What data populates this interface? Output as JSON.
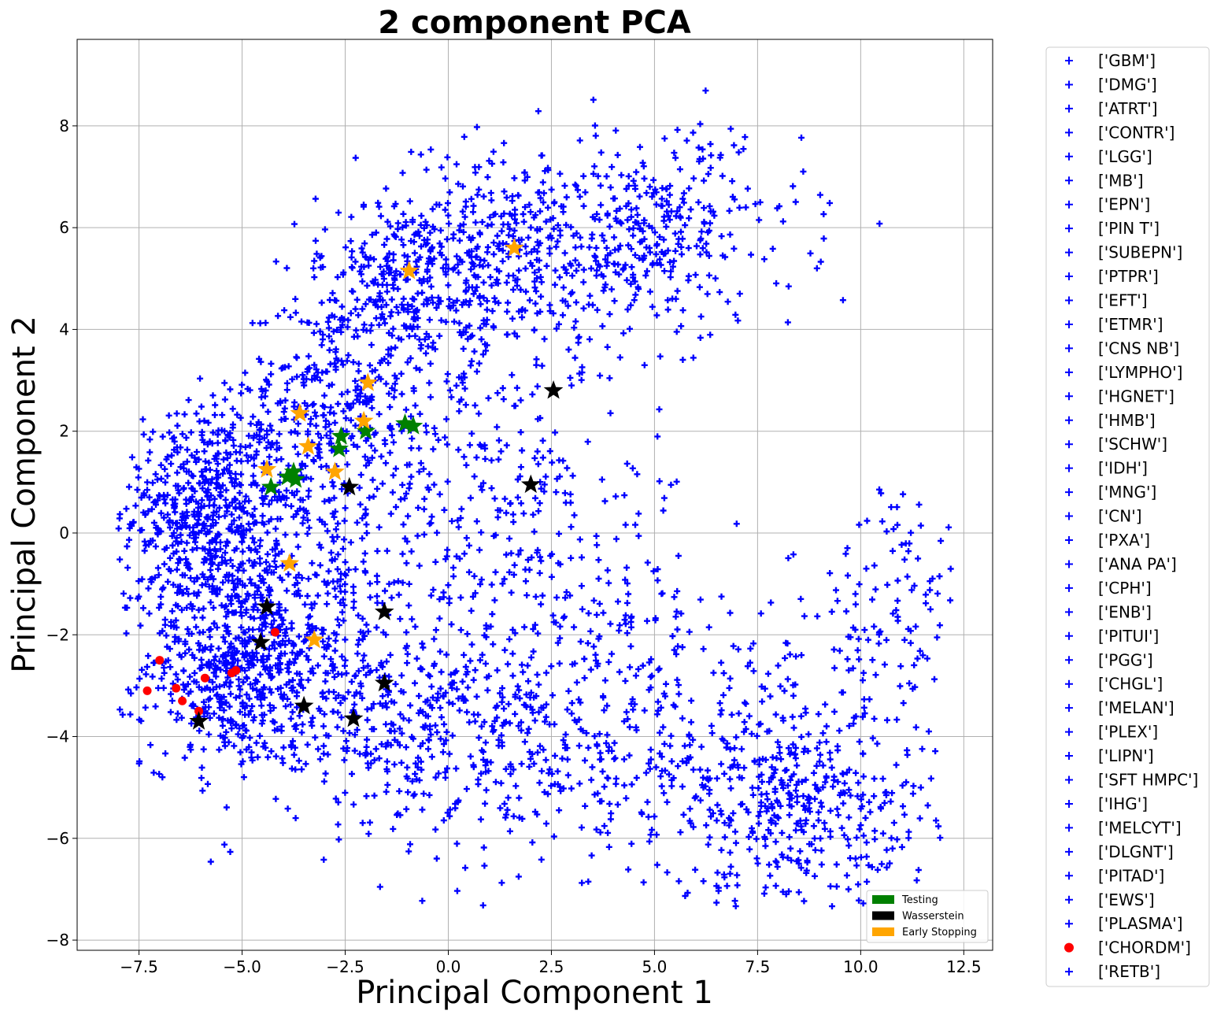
{
  "chart_data": {
    "type": "scatter",
    "title": "2 component PCA",
    "xlabel": "Principal Component 1",
    "ylabel": "Principal Component 2",
    "xlim": [
      -9,
      13.2
    ],
    "ylim": [
      -8.2,
      9.7
    ],
    "xticks": [
      -7.5,
      -5.0,
      -2.5,
      0.0,
      2.5,
      5.0,
      7.5,
      10.0,
      12.5
    ],
    "xtick_labels": [
      "−7.5",
      "−5.0",
      "−2.5",
      "0.0",
      "2.5",
      "5.0",
      "7.5",
      "10.0",
      "12.5"
    ],
    "yticks": [
      -8,
      -6,
      -4,
      -2,
      0,
      2,
      4,
      6,
      8
    ],
    "ytick_labels": [
      "−8",
      "−6",
      "−4",
      "−2",
      "0",
      "2",
      "4",
      "6",
      "8"
    ],
    "grid": true,
    "point_color": "#0000ff",
    "class_legend": {
      "placement": "outside-right",
      "entries": [
        {
          "label": "['GBM']",
          "marker": "plus",
          "color": "#0000ff"
        },
        {
          "label": "['DMG']",
          "marker": "plus",
          "color": "#0000ff"
        },
        {
          "label": "['ATRT']",
          "marker": "plus",
          "color": "#0000ff"
        },
        {
          "label": "['CONTR']",
          "marker": "plus",
          "color": "#0000ff"
        },
        {
          "label": "['LGG']",
          "marker": "plus",
          "color": "#0000ff"
        },
        {
          "label": "['MB']",
          "marker": "plus",
          "color": "#0000ff"
        },
        {
          "label": "['EPN']",
          "marker": "plus",
          "color": "#0000ff"
        },
        {
          "label": "['PIN T']",
          "marker": "plus",
          "color": "#0000ff"
        },
        {
          "label": "['SUBEPN']",
          "marker": "plus",
          "color": "#0000ff"
        },
        {
          "label": "['PTPR']",
          "marker": "plus",
          "color": "#0000ff"
        },
        {
          "label": "['EFT']",
          "marker": "plus",
          "color": "#0000ff"
        },
        {
          "label": "['ETMR']",
          "marker": "plus",
          "color": "#0000ff"
        },
        {
          "label": "['CNS NB']",
          "marker": "plus",
          "color": "#0000ff"
        },
        {
          "label": "['LYMPHO']",
          "marker": "plus",
          "color": "#0000ff"
        },
        {
          "label": "['HGNET']",
          "marker": "plus",
          "color": "#0000ff"
        },
        {
          "label": "['HMB']",
          "marker": "plus",
          "color": "#0000ff"
        },
        {
          "label": "['SCHW']",
          "marker": "plus",
          "color": "#0000ff"
        },
        {
          "label": "['IDH']",
          "marker": "plus",
          "color": "#0000ff"
        },
        {
          "label": "['MNG']",
          "marker": "plus",
          "color": "#0000ff"
        },
        {
          "label": "['CN']",
          "marker": "plus",
          "color": "#0000ff"
        },
        {
          "label": "['PXA']",
          "marker": "plus",
          "color": "#0000ff"
        },
        {
          "label": "['ANA PA']",
          "marker": "plus",
          "color": "#0000ff"
        },
        {
          "label": "['CPH']",
          "marker": "plus",
          "color": "#0000ff"
        },
        {
          "label": "['ENB']",
          "marker": "plus",
          "color": "#0000ff"
        },
        {
          "label": "['PITUI']",
          "marker": "plus",
          "color": "#0000ff"
        },
        {
          "label": "['PGG']",
          "marker": "plus",
          "color": "#0000ff"
        },
        {
          "label": "['CHGL']",
          "marker": "plus",
          "color": "#0000ff"
        },
        {
          "label": "['MELAN']",
          "marker": "plus",
          "color": "#0000ff"
        },
        {
          "label": "['PLEX']",
          "marker": "plus",
          "color": "#0000ff"
        },
        {
          "label": "['LIPN']",
          "marker": "plus",
          "color": "#0000ff"
        },
        {
          "label": "['SFT HMPC']",
          "marker": "plus",
          "color": "#0000ff"
        },
        {
          "label": "['IHG']",
          "marker": "plus",
          "color": "#0000ff"
        },
        {
          "label": "['MELCYT']",
          "marker": "plus",
          "color": "#0000ff"
        },
        {
          "label": "['DLGNT']",
          "marker": "plus",
          "color": "#0000ff"
        },
        {
          "label": "['PITAD']",
          "marker": "plus",
          "color": "#0000ff"
        },
        {
          "label": "['EWS']",
          "marker": "plus",
          "color": "#0000ff"
        },
        {
          "label": "['PLASMA']",
          "marker": "plus",
          "color": "#0000ff"
        },
        {
          "label": "['CHORDM']",
          "marker": "circle",
          "color": "#ff0000"
        },
        {
          "label": "['RETB']",
          "marker": "plus",
          "color": "#0000ff"
        }
      ]
    },
    "highlight_legend": {
      "placement": "lower-right",
      "entries": [
        {
          "label": "Testing",
          "color": "#008000"
        },
        {
          "label": "Wasserstein",
          "color": "#000000"
        },
        {
          "label": "Early Stopping",
          "color": "#ffa500"
        }
      ]
    },
    "chordm_points": [
      [
        -7.3,
        -3.1
      ],
      [
        -7.0,
        -2.5
      ],
      [
        -6.6,
        -3.05
      ],
      [
        -6.45,
        -3.3
      ],
      [
        -5.9,
        -2.85
      ],
      [
        -5.25,
        -2.75
      ],
      [
        -5.15,
        -2.7
      ],
      [
        -6.05,
        -3.5
      ],
      [
        -4.2,
        -1.95
      ]
    ],
    "testing_points": [
      [
        -4.3,
        0.9
      ],
      [
        -3.9,
        1.1
      ],
      [
        -3.75,
        1.2
      ],
      [
        -3.7,
        1.05
      ],
      [
        -2.6,
        1.9
      ],
      [
        -2.65,
        1.65
      ],
      [
        -2.0,
        2.0
      ],
      [
        -1.05,
        2.15
      ],
      [
        -0.85,
        2.1
      ]
    ],
    "wasserstein_points": [
      [
        -6.05,
        -3.7
      ],
      [
        -4.4,
        -1.45
      ],
      [
        -4.55,
        -2.15
      ],
      [
        -3.5,
        -3.4
      ],
      [
        -2.3,
        -3.65
      ],
      [
        -1.55,
        -2.95
      ],
      [
        -1.55,
        -1.55
      ],
      [
        -2.4,
        0.9
      ],
      [
        2.0,
        0.95
      ],
      [
        2.55,
        2.8
      ]
    ],
    "early_stopping_points": [
      [
        -4.4,
        1.25
      ],
      [
        -3.85,
        -0.6
      ],
      [
        -3.4,
        1.7
      ],
      [
        -3.6,
        2.35
      ],
      [
        -2.75,
        1.2
      ],
      [
        -2.05,
        2.2
      ],
      [
        -1.95,
        2.95
      ],
      [
        -3.25,
        -2.1
      ],
      [
        -0.95,
        5.15
      ],
      [
        1.6,
        5.6
      ]
    ]
  }
}
